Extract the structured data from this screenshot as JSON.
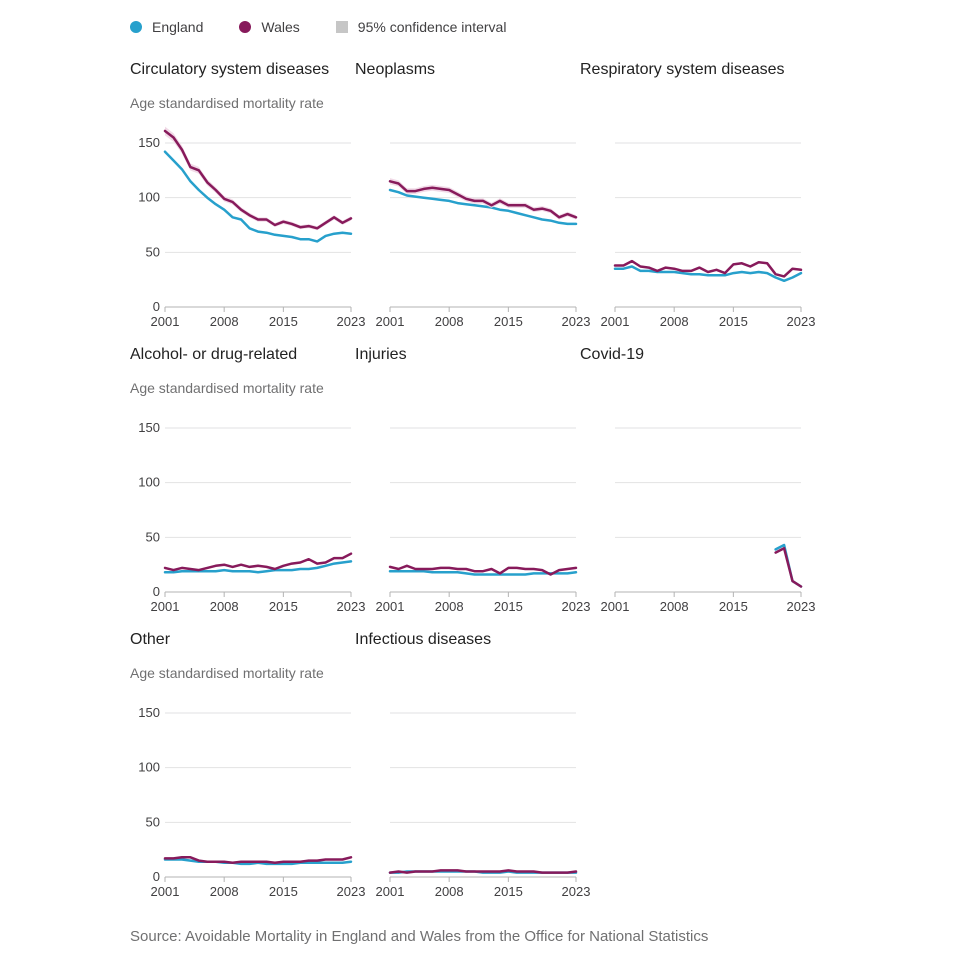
{
  "legend": {
    "england_label": "England",
    "wales_label": "Wales",
    "ci_label": "95% confidence interval"
  },
  "colors": {
    "england": "#27a0cc",
    "wales": "#871a5b",
    "ci": "#c6c6c6",
    "wales_ci": "#f0d6e4"
  },
  "source": "Source: Avoidable Mortality in England and Wales from the Office for National Statistics",
  "chart_data": {
    "type": "line",
    "ylabel": "Age standardised mortality rate",
    "ylim": [
      0,
      150
    ],
    "y_ticks": [
      0,
      50,
      100,
      150
    ],
    "x_ticks": [
      2001,
      2008,
      2015,
      2023
    ],
    "x": [
      2001,
      2002,
      2003,
      2004,
      2005,
      2006,
      2007,
      2008,
      2009,
      2010,
      2011,
      2012,
      2013,
      2014,
      2015,
      2016,
      2017,
      2018,
      2019,
      2020,
      2021,
      2022,
      2023
    ],
    "grid": true,
    "legend_position": "top-left",
    "panels": [
      {
        "title": "Circulatory system diseases",
        "series": [
          {
            "name": "England",
            "values": [
              142,
              134,
              126,
              115,
              107,
              100,
              94,
              89,
              82,
              80,
              72,
              69,
              68,
              66,
              65,
              64,
              62,
              62,
              60,
              65,
              67,
              68,
              67
            ]
          },
          {
            "name": "Wales",
            "values": [
              161,
              155,
              144,
              128,
              125,
              114,
              107,
              99,
              96,
              89,
              84,
              80,
              80,
              75,
              78,
              76,
              73,
              74,
              72,
              77,
              82,
              77,
              81
            ]
          }
        ]
      },
      {
        "title": "Neoplasms",
        "series": [
          {
            "name": "England",
            "values": [
              107,
              105,
              102,
              101,
              100,
              99,
              98,
              97,
              95,
              94,
              93,
              92,
              91,
              89,
              88,
              86,
              84,
              82,
              80,
              79,
              77,
              76,
              76
            ]
          },
          {
            "name": "Wales",
            "values": [
              115,
              113,
              106,
              106,
              108,
              109,
              108,
              107,
              103,
              99,
              97,
              97,
              93,
              97,
              93,
              93,
              93,
              89,
              90,
              88,
              82,
              85,
              82
            ]
          }
        ]
      },
      {
        "title": "Respiratory system diseases",
        "series": [
          {
            "name": "England",
            "values": [
              35,
              35,
              37,
              33,
              33,
              32,
              32,
              32,
              31,
              30,
              30,
              29,
              29,
              29,
              31,
              32,
              31,
              32,
              31,
              27,
              24,
              27,
              31
            ]
          },
          {
            "name": "Wales",
            "values": [
              38,
              38,
              42,
              37,
              36,
              33,
              36,
              35,
              33,
              33,
              36,
              32,
              34,
              31,
              39,
              40,
              37,
              41,
              40,
              30,
              28,
              35,
              34
            ]
          }
        ]
      },
      {
        "title": "Alcohol- or drug-related",
        "series": [
          {
            "name": "England",
            "values": [
              18,
              18,
              19,
              19,
              19,
              19,
              19,
              20,
              19,
              19,
              19,
              18,
              19,
              20,
              20,
              20,
              21,
              21,
              22,
              24,
              26,
              27,
              28
            ]
          },
          {
            "name": "Wales",
            "values": [
              22,
              20,
              22,
              21,
              20,
              22,
              24,
              25,
              23,
              25,
              23,
              24,
              23,
              21,
              24,
              26,
              27,
              30,
              26,
              27,
              31,
              31,
              35
            ]
          }
        ]
      },
      {
        "title": "Injuries",
        "series": [
          {
            "name": "England",
            "values": [
              19,
              19,
              19,
              19,
              19,
              18,
              18,
              18,
              18,
              17,
              16,
              16,
              16,
              16,
              16,
              16,
              16,
              17,
              17,
              17,
              17,
              17,
              18
            ]
          },
          {
            "name": "Wales",
            "values": [
              23,
              21,
              24,
              21,
              21,
              21,
              22,
              22,
              21,
              21,
              19,
              19,
              21,
              17,
              22,
              22,
              21,
              21,
              20,
              16,
              20,
              21,
              22
            ]
          }
        ]
      },
      {
        "title": "Covid-19",
        "series": [
          {
            "name": "England",
            "values": [
              null,
              null,
              null,
              null,
              null,
              null,
              null,
              null,
              null,
              null,
              null,
              null,
              null,
              null,
              null,
              null,
              null,
              null,
              null,
              39,
              43,
              10,
              5
            ]
          },
          {
            "name": "Wales",
            "values": [
              null,
              null,
              null,
              null,
              null,
              null,
              null,
              null,
              null,
              null,
              null,
              null,
              null,
              null,
              null,
              null,
              null,
              null,
              null,
              36,
              40,
              10,
              5
            ]
          }
        ]
      },
      {
        "title": "Other",
        "series": [
          {
            "name": "England",
            "values": [
              16,
              16,
              16,
              15,
              14,
              14,
              14,
              13,
              13,
              12,
              12,
              13,
              12,
              12,
              12,
              12,
              13,
              13,
              13,
              13,
              13,
              13,
              14
            ]
          },
          {
            "name": "Wales",
            "values": [
              17,
              17,
              18,
              18,
              15,
              14,
              14,
              14,
              13,
              14,
              14,
              14,
              14,
              13,
              14,
              14,
              14,
              15,
              15,
              16,
              16,
              16,
              18
            ]
          }
        ]
      },
      {
        "title": "Infectious diseases",
        "series": [
          {
            "name": "England",
            "values": [
              4,
              4,
              5,
              5,
              5,
              5,
              5,
              5,
              5,
              5,
              5,
              4,
              4,
              4,
              5,
              4,
              4,
              4,
              4,
              4,
              4,
              4,
              4
            ]
          },
          {
            "name": "Wales",
            "values": [
              4,
              5,
              4,
              5,
              5,
              5,
              6,
              6,
              6,
              5,
              5,
              5,
              5,
              5,
              6,
              5,
              5,
              5,
              4,
              4,
              4,
              4,
              5
            ]
          }
        ]
      }
    ]
  }
}
